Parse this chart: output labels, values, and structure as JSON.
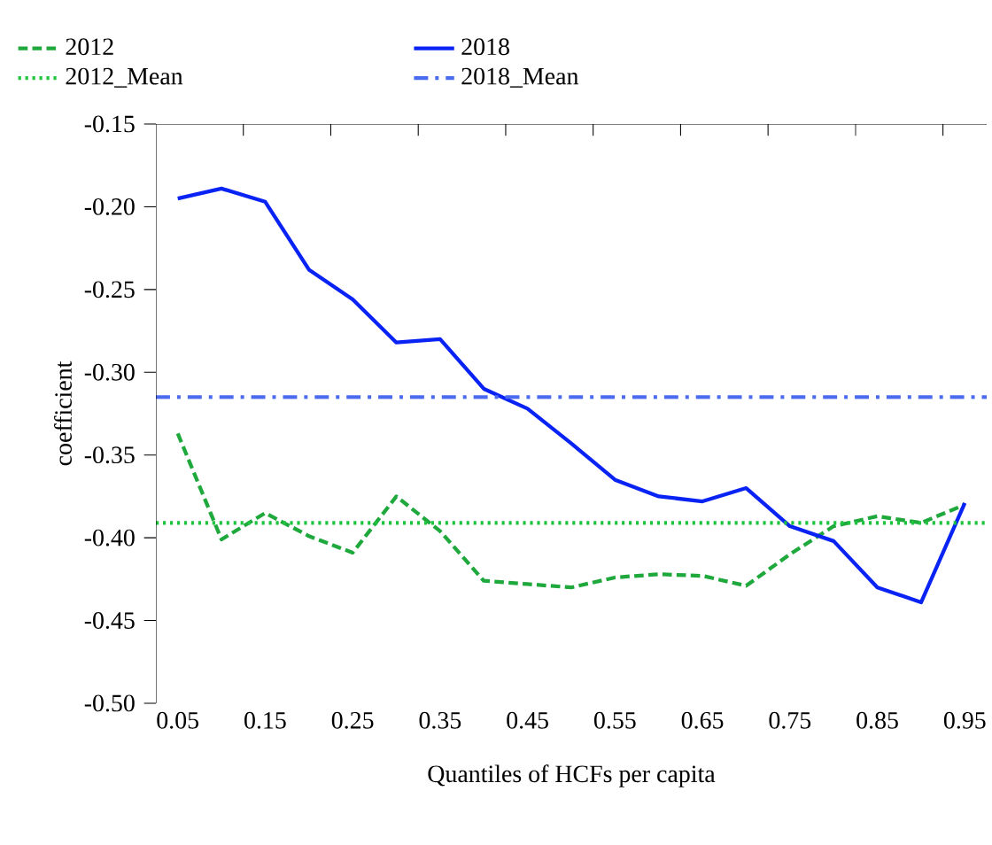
{
  "chart_data": {
    "type": "line",
    "xlabel": "Quantiles of HCFs per capita",
    "ylabel": "coefficient",
    "legend": "top",
    "x": [
      0.05,
      0.1,
      0.15,
      0.2,
      0.25,
      0.3,
      0.35,
      0.4,
      0.45,
      0.5,
      0.55,
      0.6,
      0.65,
      0.7,
      0.75,
      0.8,
      0.85,
      0.9,
      0.95
    ],
    "series": [
      {
        "name": "2012",
        "color": "#1fa83c",
        "line_style": "dashed",
        "values": [
          -0.337,
          -0.401,
          -0.385,
          -0.399,
          -0.409,
          -0.375,
          -0.396,
          -0.426,
          -0.428,
          -0.43,
          -0.424,
          -0.422,
          -0.423,
          -0.429,
          -0.41,
          -0.393,
          -0.387,
          -0.391,
          -0.38
        ]
      },
      {
        "name": "2018",
        "color": "#0a23f5",
        "line_style": "solid",
        "values": [
          -0.195,
          -0.189,
          -0.197,
          -0.238,
          -0.256,
          -0.282,
          -0.28,
          -0.31,
          -0.322,
          -0.343,
          -0.365,
          -0.375,
          -0.378,
          -0.37,
          -0.393,
          -0.402,
          -0.43,
          -0.439,
          -0.379
        ]
      }
    ],
    "ref_lines": [
      {
        "axis": "y",
        "value": -0.391,
        "label": "2012_Mean",
        "color": "#1ec43e",
        "line_style": "dotted"
      },
      {
        "axis": "y",
        "value": -0.315,
        "label": "2018_Mean",
        "color": "#4a6af0",
        "line_style": "dashdot"
      }
    ],
    "xlim": [
      0.025,
      0.975
    ],
    "ylim": [
      -0.5,
      -0.15
    ],
    "xticks": [
      {
        "value": 0.05,
        "label": "0.05"
      },
      {
        "value": 0.15,
        "label": "0.15"
      },
      {
        "value": 0.25,
        "label": "0.25"
      },
      {
        "value": 0.35,
        "label": "0.35"
      },
      {
        "value": 0.45,
        "label": "0.45"
      },
      {
        "value": 0.55,
        "label": "0.55"
      },
      {
        "value": 0.65,
        "label": "0.65"
      },
      {
        "value": 0.75,
        "label": "0.75"
      },
      {
        "value": 0.85,
        "label": "0.85"
      },
      {
        "value": 0.95,
        "label": "0.95"
      },
      {
        "value": 0.125,
        "label": null
      },
      {
        "value": 0.225,
        "label": null
      },
      {
        "value": 0.325,
        "label": null
      },
      {
        "value": 0.425,
        "label": null
      },
      {
        "value": 0.525,
        "label": null
      },
      {
        "value": 0.625,
        "label": null
      },
      {
        "value": 0.725,
        "label": null
      },
      {
        "value": 0.825,
        "label": null
      },
      {
        "value": 0.925,
        "label": null
      }
    ],
    "yticks": [
      {
        "value": -0.5,
        "label": "-0.50"
      },
      {
        "value": -0.45,
        "label": "-0.45"
      },
      {
        "value": -0.4,
        "label": "-0.40"
      },
      {
        "value": -0.35,
        "label": "-0.35"
      },
      {
        "value": -0.3,
        "label": "-0.30"
      },
      {
        "value": -0.25,
        "label": "-0.25"
      },
      {
        "value": -0.2,
        "label": "-0.20"
      },
      {
        "value": -0.15,
        "label": "-0.15"
      }
    ]
  }
}
